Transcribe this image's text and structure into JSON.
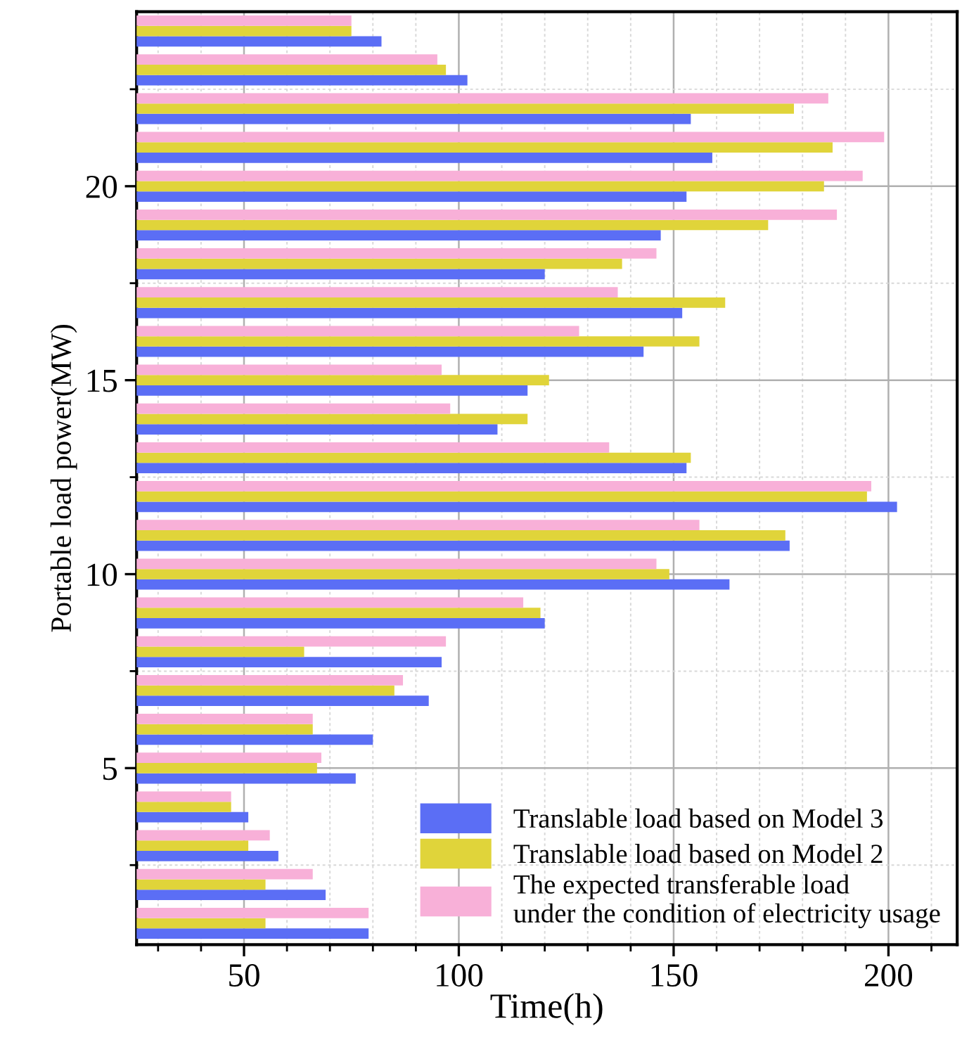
{
  "chart_data": {
    "type": "bar",
    "orientation": "horizontal",
    "xlabel": "Time(h)",
    "ylabel": "Portable load power(MW)",
    "x": [
      1,
      2,
      3,
      4,
      5,
      6,
      7,
      8,
      9,
      10,
      11,
      12,
      13,
      14,
      15,
      16,
      17,
      18,
      19,
      20,
      21,
      22,
      23,
      24
    ],
    "series": [
      {
        "name": "Translable load based on Model 3",
        "color": "#5b6ef5",
        "values": [
          79,
          69,
          58,
          51,
          76,
          80,
          93,
          96,
          120,
          163,
          177,
          202,
          153,
          109,
          116,
          143,
          152,
          120,
          147,
          153,
          159,
          154,
          102,
          82
        ]
      },
      {
        "name": "Translable load based on Model 2",
        "color": "#e0d43a",
        "values": [
          55,
          55,
          51,
          47,
          67,
          66,
          85,
          64,
          119,
          149,
          176,
          195,
          154,
          116,
          121,
          156,
          162,
          138,
          172,
          185,
          187,
          178,
          97,
          75
        ]
      },
      {
        "name": "The expected transferable load\nunder the condition of electricity usage",
        "color": "#f8b0d8",
        "values": [
          79,
          66,
          56,
          47,
          68,
          66,
          87,
          97,
          115,
          146,
          156,
          196,
          135,
          98,
          96,
          128,
          137,
          146,
          188,
          194,
          199,
          186,
          95,
          75
        ]
      }
    ],
    "xlim": [
      25,
      216
    ],
    "xticks": [
      50,
      100,
      150,
      200
    ],
    "ylim": [
      0.45,
      24.5
    ],
    "yticks": [
      5,
      10,
      15,
      20
    ],
    "grid": true,
    "legend": "bottom right"
  }
}
